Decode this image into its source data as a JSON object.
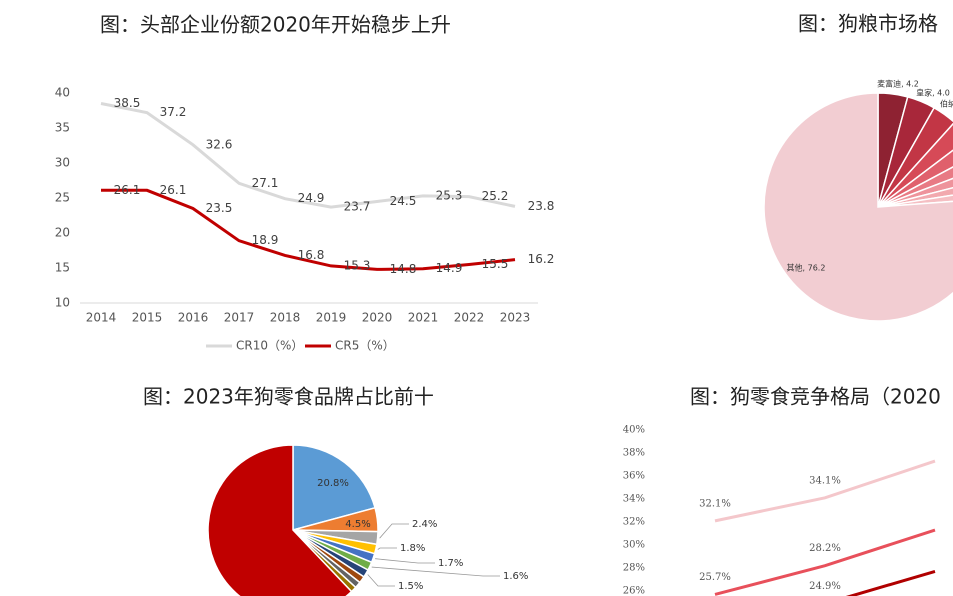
{
  "chart_data": [
    {
      "type": "line",
      "title": "图：头部企业份额2020年开始稳步上升",
      "categories": [
        "2014",
        "2015",
        "2016",
        "2017",
        "2018",
        "2019",
        "2020",
        "2021",
        "2022",
        "2023"
      ],
      "ylim": [
        10,
        40
      ],
      "yticks": [
        10,
        15,
        20,
        25,
        30,
        35,
        40
      ],
      "series": [
        {
          "name": "CR10（%）",
          "color": "#d9d9d9",
          "values": [
            38.5,
            37.2,
            32.6,
            27.1,
            24.9,
            23.7,
            24.5,
            25.3,
            25.2,
            23.8
          ]
        },
        {
          "name": "CR5（%）",
          "color": "#c00000",
          "values": [
            26.1,
            26.1,
            23.5,
            18.9,
            16.8,
            15.3,
            14.8,
            14.9,
            15.5,
            16.2
          ]
        }
      ]
    },
    {
      "type": "pie",
      "title": "图：狗粮市场格",
      "values": [
        4.2,
        4.0,
        3.5,
        3.0,
        2.5,
        2.0,
        1.8,
        1.5,
        1.3,
        76.2
      ],
      "value_labels": [
        "麦富迪, 4.2",
        "皇家, 4.0",
        "伯纳",
        null,
        null,
        null,
        null,
        null,
        null,
        "其他, 76.2"
      ],
      "colors": [
        "#8e2232",
        "#a8273a",
        "#c23645",
        "#d64a57",
        "#e0606c",
        "#e87a84",
        "#ee939b",
        "#f2a9ae",
        "#f5bfc3",
        "#f2cdd2"
      ]
    },
    {
      "type": "pie",
      "title": "图：2023年狗零食品牌占比前十",
      "values": [
        20.8,
        4.5,
        2.4,
        1.8,
        1.7,
        1.6,
        1.5,
        1.3,
        1.2,
        1.1,
        62.1
      ],
      "value_labels": [
        "20.8%",
        "4.5%",
        "2.4%",
        "1.8%",
        "1.7%",
        "1.6%",
        "1.5%",
        null,
        null,
        null,
        null
      ],
      "colors": [
        "#5b9bd5",
        "#ed7d31",
        "#a5a5a5",
        "#ffc000",
        "#4472c4",
        "#70ad47",
        "#264478",
        "#9e480e",
        "#636363",
        "#997300",
        "#c00000"
      ]
    },
    {
      "type": "line",
      "title": "图：狗零食竞争格局（2020",
      "categories": [
        null,
        null,
        null
      ],
      "ylim": [
        24,
        40
      ],
      "yticks": [
        {
          "value": 26,
          "label": "26%"
        },
        {
          "value": 28,
          "label": "28%"
        },
        {
          "value": 30,
          "label": "30%"
        },
        {
          "value": 32,
          "label": "32%"
        },
        {
          "value": 34,
          "label": "34%"
        },
        {
          "value": 36,
          "label": "36%"
        },
        {
          "value": 38,
          "label": "38%"
        },
        {
          "value": 40,
          "label": "40%"
        }
      ],
      "series": [
        {
          "color": "#f4c7cb",
          "values": [
            32.1,
            34.1,
            37.3
          ],
          "value_labels": [
            "32.1%",
            "34.1%",
            null
          ]
        },
        {
          "color": "#e8505b",
          "values": [
            25.7,
            28.2,
            31.3
          ],
          "value_labels": [
            "25.7%",
            "28.2%",
            null
          ]
        },
        {
          "color": "#b00000",
          "values": [
            25.4,
            24.9,
            27.7
          ],
          "value_labels": [
            null,
            "24.9%",
            null
          ]
        }
      ]
    }
  ]
}
